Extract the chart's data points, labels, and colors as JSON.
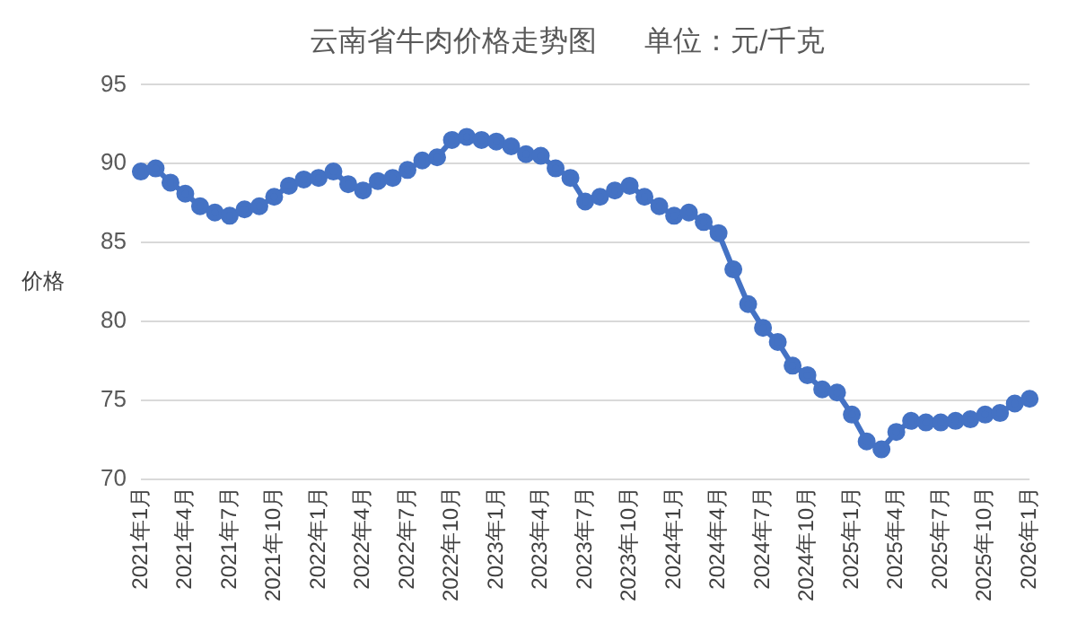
{
  "chart_data": {
    "type": "line",
    "title": "云南省牛肉价格走势图      单位：元/千克",
    "ylabel": "价格",
    "categories": [
      "2021年1月",
      null,
      null,
      "2021年4月",
      null,
      null,
      "2021年7月",
      null,
      null,
      "2021年10月",
      null,
      null,
      "2022年1月",
      null,
      null,
      "2022年4月",
      null,
      null,
      "2022年7月",
      null,
      null,
      "2022年10月",
      null,
      null,
      "2023年1月",
      null,
      null,
      "2023年4月",
      null,
      null,
      "2023年7月",
      null,
      null,
      "2023年10月",
      null,
      null,
      "2024年1月",
      null,
      null,
      "2024年4月",
      null,
      null,
      "2024年7月",
      null,
      null,
      "2024年10月",
      null,
      null,
      "2025年1月",
      null,
      null,
      "2025年4月",
      null,
      null,
      "2025年7月",
      null,
      null,
      "2025年10月",
      null,
      null,
      "2026年1月"
    ],
    "series": [
      {
        "color": "#4472c4",
        "values": [
          89.5,
          89.7,
          88.8,
          88.1,
          87.3,
          86.9,
          86.7,
          87.1,
          87.3,
          87.9,
          88.6,
          89.0,
          89.1,
          89.5,
          88.7,
          88.3,
          88.9,
          89.1,
          89.6,
          90.2,
          90.4,
          91.5,
          91.7,
          91.5,
          91.4,
          91.1,
          90.6,
          90.5,
          89.7,
          89.1,
          87.6,
          87.9,
          88.3,
          88.6,
          87.9,
          87.3,
          86.7,
          86.9,
          86.3,
          85.6,
          83.3,
          81.1,
          79.6,
          78.7,
          77.2,
          76.6,
          75.7,
          75.5,
          74.1,
          72.4,
          71.9,
          73.0,
          73.7,
          73.6,
          73.6,
          73.7,
          73.8,
          74.1,
          74.2,
          74.8,
          75.1
        ]
      }
    ],
    "ylim": [
      70,
      95
    ],
    "yticks": [
      70,
      75,
      80,
      85,
      90,
      95
    ],
    "grid": "y",
    "marker": "circle",
    "line_style": "solid",
    "legend": false
  }
}
